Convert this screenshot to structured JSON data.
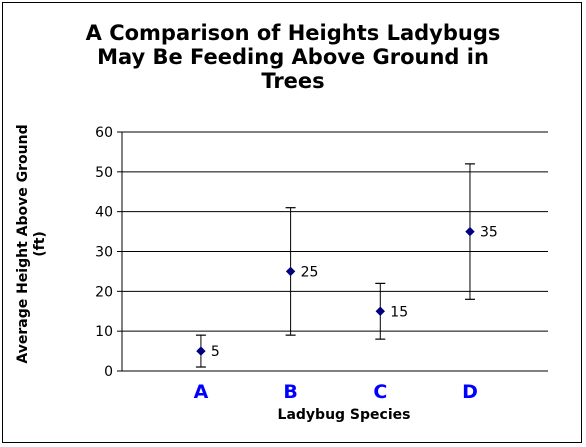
{
  "chart_data": {
    "type": "scatter",
    "title": "A Comparison of Heights Ladybugs May Be Feeding Above Ground in Trees",
    "title_lines": [
      "A Comparison of Heights Ladybugs",
      "May Be Feeding Above Ground in",
      "Trees"
    ],
    "xlabel": "Ladybug Species",
    "ylabel": "Average Height Above Ground (ft)",
    "ylim": [
      0,
      60
    ],
    "yticks": [
      0,
      10,
      20,
      30,
      40,
      50,
      60
    ],
    "grid": true,
    "legend": "none",
    "categories": [
      "A",
      "B",
      "C",
      "D"
    ],
    "values": [
      5,
      25,
      15,
      35
    ],
    "error_low": [
      1,
      9,
      8,
      18
    ],
    "error_high": [
      9,
      41,
      22,
      52
    ],
    "data_labels": [
      "5",
      "25",
      "15",
      "35"
    ],
    "colors": {
      "marker": "#000080",
      "category_label": "#0000ff",
      "grid": "#000000",
      "error_bar": "#000000"
    }
  }
}
